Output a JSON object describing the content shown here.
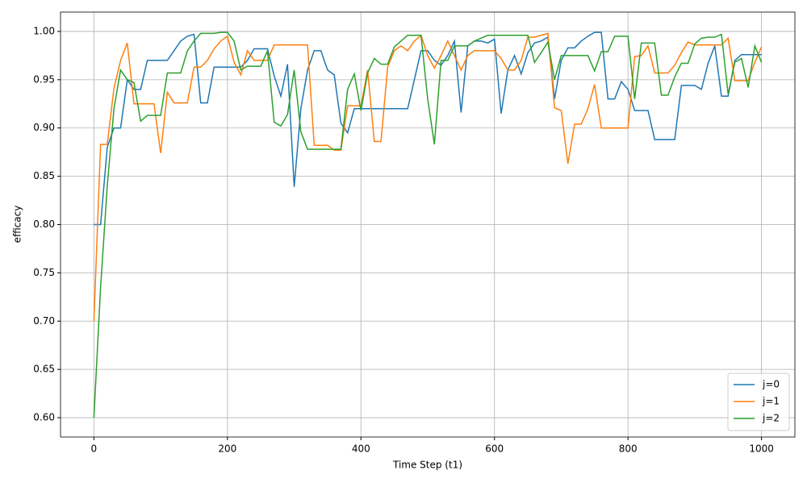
{
  "chart_data": {
    "type": "line",
    "xlabel": "Time Step (t1)",
    "ylabel": "efficacy",
    "x": [
      0,
      10,
      20,
      30,
      40,
      50,
      60,
      70,
      80,
      90,
      100,
      110,
      120,
      130,
      140,
      150,
      160,
      170,
      180,
      190,
      200,
      210,
      220,
      230,
      240,
      250,
      260,
      270,
      280,
      290,
      300,
      310,
      320,
      330,
      340,
      350,
      360,
      370,
      380,
      390,
      400,
      410,
      420,
      430,
      440,
      450,
      460,
      470,
      480,
      490,
      500,
      510,
      520,
      530,
      540,
      550,
      560,
      570,
      580,
      590,
      600,
      610,
      620,
      630,
      640,
      650,
      660,
      670,
      680,
      690,
      700,
      710,
      720,
      730,
      740,
      750,
      760,
      770,
      780,
      790,
      800,
      810,
      820,
      830,
      840,
      850,
      860,
      870,
      880,
      890,
      900,
      910,
      920,
      930,
      940,
      950,
      960,
      970,
      980,
      990,
      1000
    ],
    "series": [
      {
        "name": "j=0",
        "color": "#1f77b4",
        "values": [
          0.8,
          0.8,
          0.88,
          0.9,
          0.9,
          0.95,
          0.94,
          0.94,
          0.97,
          0.97,
          0.97,
          0.97,
          0.98,
          0.99,
          0.995,
          0.997,
          0.926,
          0.926,
          0.963,
          0.963,
          0.963,
          0.963,
          0.963,
          0.97,
          0.982,
          0.982,
          0.982,
          0.954,
          0.933,
          0.966,
          0.839,
          0.92,
          0.96,
          0.98,
          0.98,
          0.96,
          0.955,
          0.905,
          0.895,
          0.92,
          0.92,
          0.92,
          0.92,
          0.92,
          0.92,
          0.92,
          0.92,
          0.92,
          0.95,
          0.98,
          0.98,
          0.97,
          0.965,
          0.975,
          0.99,
          0.916,
          0.985,
          0.99,
          0.99,
          0.988,
          0.992,
          0.915,
          0.96,
          0.975,
          0.956,
          0.978,
          0.988,
          0.99,
          0.994,
          0.93,
          0.97,
          0.983,
          0.983,
          0.99,
          0.995,
          0.999,
          0.999,
          0.93,
          0.93,
          0.948,
          0.94,
          0.918,
          0.918,
          0.918,
          0.888,
          0.888,
          0.888,
          0.888,
          0.944,
          0.944,
          0.944,
          0.94,
          0.967,
          0.985,
          0.933,
          0.933,
          0.97,
          0.976,
          0.976,
          0.976,
          0.976
        ]
      },
      {
        "name": "j=1",
        "color": "#ff7f0e",
        "values": [
          0.7,
          0.883,
          0.883,
          0.941,
          0.97,
          0.988,
          0.925,
          0.925,
          0.925,
          0.925,
          0.874,
          0.937,
          0.926,
          0.926,
          0.926,
          0.963,
          0.963,
          0.97,
          0.982,
          0.99,
          0.995,
          0.968,
          0.955,
          0.98,
          0.97,
          0.97,
          0.97,
          0.986,
          0.986,
          0.986,
          0.986,
          0.986,
          0.986,
          0.882,
          0.882,
          0.882,
          0.877,
          0.877,
          0.923,
          0.923,
          0.923,
          0.96,
          0.886,
          0.886,
          0.963,
          0.98,
          0.985,
          0.98,
          0.99,
          0.996,
          0.975,
          0.962,
          0.975,
          0.99,
          0.975,
          0.96,
          0.975,
          0.98,
          0.98,
          0.98,
          0.98,
          0.972,
          0.96,
          0.96,
          0.97,
          0.994,
          0.994,
          0.996,
          0.998,
          0.921,
          0.918,
          0.863,
          0.904,
          0.904,
          0.92,
          0.945,
          0.9,
          0.9,
          0.9,
          0.9,
          0.9,
          0.974,
          0.975,
          0.985,
          0.957,
          0.957,
          0.957,
          0.965,
          0.978,
          0.989,
          0.986,
          0.986,
          0.986,
          0.986,
          0.986,
          0.993,
          0.949,
          0.949,
          0.949,
          0.968,
          0.984
        ]
      },
      {
        "name": "j=2",
        "color": "#2ca02c",
        "values": [
          0.6,
          0.735,
          0.84,
          0.92,
          0.96,
          0.95,
          0.947,
          0.907,
          0.913,
          0.913,
          0.913,
          0.957,
          0.957,
          0.957,
          0.98,
          0.99,
          0.998,
          0.998,
          0.998,
          0.999,
          0.999,
          0.99,
          0.96,
          0.964,
          0.964,
          0.964,
          0.98,
          0.906,
          0.902,
          0.914,
          0.96,
          0.896,
          0.878,
          0.878,
          0.878,
          0.878,
          0.878,
          0.878,
          0.94,
          0.956,
          0.918,
          0.957,
          0.972,
          0.966,
          0.966,
          0.984,
          0.99,
          0.996,
          0.996,
          0.996,
          0.93,
          0.883,
          0.97,
          0.97,
          0.985,
          0.985,
          0.985,
          0.99,
          0.993,
          0.996,
          0.996,
          0.996,
          0.996,
          0.996,
          0.996,
          0.996,
          0.968,
          0.978,
          0.989,
          0.95,
          0.975,
          0.975,
          0.975,
          0.975,
          0.975,
          0.959,
          0.979,
          0.979,
          0.995,
          0.995,
          0.995,
          0.93,
          0.988,
          0.988,
          0.988,
          0.934,
          0.934,
          0.953,
          0.967,
          0.967,
          0.987,
          0.993,
          0.994,
          0.994,
          0.997,
          0.935,
          0.968,
          0.972,
          0.942,
          0.985,
          0.968
        ]
      }
    ],
    "xlim": [
      -50,
      1050
    ],
    "ylim": [
      0.58,
      1.02
    ],
    "xticks": [
      0,
      200,
      400,
      600,
      800,
      1000
    ],
    "yticks": [
      {
        "value": 0.6,
        "label": "0.60"
      },
      {
        "value": 0.65,
        "label": "0.65"
      },
      {
        "value": 0.7,
        "label": "0.70"
      },
      {
        "value": 0.75,
        "label": "0.75"
      },
      {
        "value": 0.8,
        "label": "0.80"
      },
      {
        "value": 0.85,
        "label": "0.85"
      },
      {
        "value": 0.9,
        "label": "0.90"
      },
      {
        "value": 0.95,
        "label": "0.95"
      },
      {
        "value": 1.0,
        "label": "1.00"
      }
    ],
    "grid": true,
    "legend": "lower right"
  }
}
